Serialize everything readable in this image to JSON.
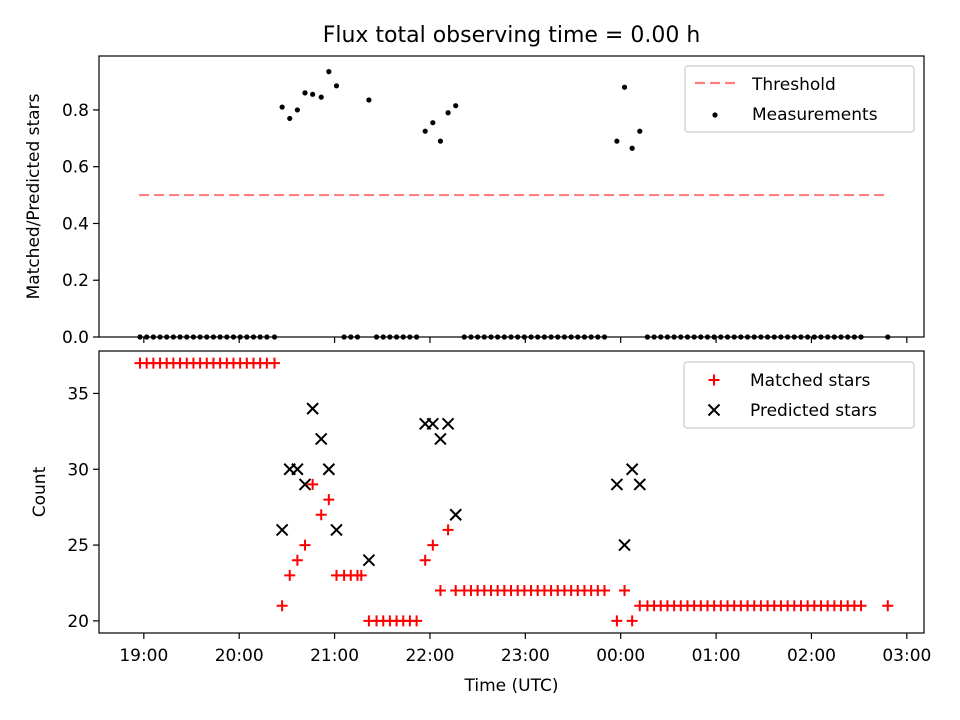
{
  "figure": {
    "title": "Flux total observing time = 0.00 h",
    "xlabel": "Time (UTC)",
    "xticks": [
      {
        "t": 19,
        "label": "19:00"
      },
      {
        "t": 20,
        "label": "20:00"
      },
      {
        "t": 21,
        "label": "21:00"
      },
      {
        "t": 22,
        "label": "22:00"
      },
      {
        "t": 23,
        "label": "23:00"
      },
      {
        "t": 24,
        "label": "00:00"
      },
      {
        "t": 25,
        "label": "01:00"
      },
      {
        "t": 26,
        "label": "02:00"
      },
      {
        "t": 27,
        "label": "03:00"
      }
    ],
    "xlim": [
      18.53,
      27.18
    ]
  },
  "chart_data": [
    {
      "type": "scatter",
      "ylabel": "Matched/Predicted stars",
      "ylim": [
        0,
        0.99
      ],
      "yticks": [
        {
          "v": 0,
          "label": "0.0"
        },
        {
          "v": 0.2,
          "label": "0.2"
        },
        {
          "v": 0.4,
          "label": "0.4"
        },
        {
          "v": 0.6,
          "label": "0.6"
        },
        {
          "v": 0.8,
          "label": "0.8"
        }
      ],
      "legend_position": "top-right",
      "legend": [
        {
          "label": "Threshold",
          "color": "#ff7f7f",
          "style": "dashed-line"
        },
        {
          "label": "Measurements",
          "color": "#000000",
          "style": "dot"
        }
      ],
      "threshold": {
        "y": 0.5,
        "x": [
          18.95,
          26.8
        ]
      },
      "measurements": [
        [
          18.96,
          0
        ],
        [
          19.03,
          0
        ],
        [
          19.1,
          0
        ],
        [
          19.17,
          0
        ],
        [
          19.24,
          0
        ],
        [
          19.31,
          0
        ],
        [
          19.38,
          0
        ],
        [
          19.45,
          0
        ],
        [
          19.52,
          0
        ],
        [
          19.59,
          0
        ],
        [
          19.66,
          0
        ],
        [
          19.73,
          0
        ],
        [
          19.8,
          0
        ],
        [
          19.87,
          0
        ],
        [
          19.94,
          0
        ],
        [
          20.01,
          0
        ],
        [
          20.08,
          0
        ],
        [
          20.15,
          0
        ],
        [
          20.22,
          0
        ],
        [
          20.29,
          0
        ],
        [
          20.37,
          0
        ],
        [
          20.45,
          0.81
        ],
        [
          20.53,
          0.77
        ],
        [
          20.61,
          0.8
        ],
        [
          20.69,
          0.86
        ],
        [
          20.77,
          0.855
        ],
        [
          20.86,
          0.845
        ],
        [
          20.94,
          0.935
        ],
        [
          21.02,
          0.885
        ],
        [
          21.1,
          0
        ],
        [
          21.17,
          0
        ],
        [
          21.24,
          0
        ],
        [
          21.36,
          0.835
        ],
        [
          21.44,
          0
        ],
        [
          21.51,
          0
        ],
        [
          21.58,
          0
        ],
        [
          21.65,
          0
        ],
        [
          21.72,
          0
        ],
        [
          21.79,
          0
        ],
        [
          21.86,
          0
        ],
        [
          21.95,
          0.725
        ],
        [
          22.03,
          0.755
        ],
        [
          22.11,
          0.69
        ],
        [
          22.19,
          0.79
        ],
        [
          22.27,
          0.815
        ],
        [
          22.36,
          0
        ],
        [
          22.43,
          0
        ],
        [
          22.5,
          0
        ],
        [
          22.57,
          0
        ],
        [
          22.64,
          0
        ],
        [
          22.71,
          0
        ],
        [
          22.78,
          0
        ],
        [
          22.85,
          0
        ],
        [
          22.92,
          0
        ],
        [
          22.99,
          0
        ],
        [
          23.06,
          0
        ],
        [
          23.13,
          0
        ],
        [
          23.2,
          0
        ],
        [
          23.27,
          0
        ],
        [
          23.34,
          0
        ],
        [
          23.41,
          0
        ],
        [
          23.48,
          0
        ],
        [
          23.55,
          0
        ],
        [
          23.62,
          0
        ],
        [
          23.69,
          0
        ],
        [
          23.76,
          0
        ],
        [
          23.83,
          0
        ],
        [
          23.96,
          0.69
        ],
        [
          24.04,
          0.88
        ],
        [
          24.12,
          0.665
        ],
        [
          24.2,
          0.725
        ],
        [
          24.28,
          0
        ],
        [
          24.35,
          0
        ],
        [
          24.42,
          0
        ],
        [
          24.49,
          0
        ],
        [
          24.56,
          0
        ],
        [
          24.63,
          0
        ],
        [
          24.7,
          0
        ],
        [
          24.77,
          0
        ],
        [
          24.84,
          0
        ],
        [
          24.91,
          0
        ],
        [
          24.98,
          0
        ],
        [
          25.05,
          0
        ],
        [
          25.12,
          0
        ],
        [
          25.19,
          0
        ],
        [
          25.26,
          0
        ],
        [
          25.33,
          0
        ],
        [
          25.4,
          0
        ],
        [
          25.47,
          0
        ],
        [
          25.54,
          0
        ],
        [
          25.61,
          0
        ],
        [
          25.68,
          0
        ],
        [
          25.75,
          0
        ],
        [
          25.82,
          0
        ],
        [
          25.89,
          0
        ],
        [
          25.96,
          0
        ],
        [
          26.03,
          0
        ],
        [
          26.1,
          0
        ],
        [
          26.17,
          0
        ],
        [
          26.24,
          0
        ],
        [
          26.31,
          0
        ],
        [
          26.38,
          0
        ],
        [
          26.45,
          0
        ],
        [
          26.52,
          0
        ],
        [
          26.8,
          0
        ]
      ]
    },
    {
      "type": "scatter",
      "ylabel": "Count",
      "ylim": [
        19.2,
        37.8
      ],
      "yticks": [
        {
          "v": 20,
          "label": "20"
        },
        {
          "v": 25,
          "label": "25"
        },
        {
          "v": 30,
          "label": "30"
        },
        {
          "v": 35,
          "label": "35"
        }
      ],
      "legend_position": "top-right",
      "series": [
        {
          "name": "Matched stars",
          "color": "#ff0000",
          "marker": "plus",
          "points": [
            [
              18.96,
              37
            ],
            [
              19.03,
              37
            ],
            [
              19.1,
              37
            ],
            [
              19.17,
              37
            ],
            [
              19.24,
              37
            ],
            [
              19.31,
              37
            ],
            [
              19.38,
              37
            ],
            [
              19.45,
              37
            ],
            [
              19.52,
              37
            ],
            [
              19.59,
              37
            ],
            [
              19.66,
              37
            ],
            [
              19.73,
              37
            ],
            [
              19.8,
              37
            ],
            [
              19.87,
              37
            ],
            [
              19.94,
              37
            ],
            [
              20.01,
              37
            ],
            [
              20.08,
              37
            ],
            [
              20.15,
              37
            ],
            [
              20.22,
              37
            ],
            [
              20.29,
              37
            ],
            [
              20.37,
              37
            ],
            [
              20.45,
              21
            ],
            [
              20.53,
              23
            ],
            [
              20.61,
              24
            ],
            [
              20.69,
              25
            ],
            [
              20.77,
              29
            ],
            [
              20.86,
              27
            ],
            [
              20.94,
              28
            ],
            [
              21.02,
              23
            ],
            [
              21.1,
              23
            ],
            [
              21.17,
              23
            ],
            [
              21.24,
              23
            ],
            [
              21.28,
              23
            ],
            [
              21.36,
              20
            ],
            [
              21.44,
              20
            ],
            [
              21.51,
              20
            ],
            [
              21.58,
              20
            ],
            [
              21.65,
              20
            ],
            [
              21.72,
              20
            ],
            [
              21.79,
              20
            ],
            [
              21.86,
              20
            ],
            [
              21.95,
              24
            ],
            [
              22.03,
              25
            ],
            [
              22.11,
              22
            ],
            [
              22.19,
              26
            ],
            [
              22.27,
              22
            ],
            [
              22.36,
              22
            ],
            [
              22.43,
              22
            ],
            [
              22.5,
              22
            ],
            [
              22.57,
              22
            ],
            [
              22.64,
              22
            ],
            [
              22.71,
              22
            ],
            [
              22.78,
              22
            ],
            [
              22.85,
              22
            ],
            [
              22.92,
              22
            ],
            [
              22.99,
              22
            ],
            [
              23.06,
              22
            ],
            [
              23.13,
              22
            ],
            [
              23.2,
              22
            ],
            [
              23.27,
              22
            ],
            [
              23.34,
              22
            ],
            [
              23.41,
              22
            ],
            [
              23.48,
              22
            ],
            [
              23.55,
              22
            ],
            [
              23.62,
              22
            ],
            [
              23.69,
              22
            ],
            [
              23.76,
              22
            ],
            [
              23.83,
              22
            ],
            [
              23.96,
              20
            ],
            [
              24.04,
              22
            ],
            [
              24.12,
              20
            ],
            [
              24.2,
              21
            ],
            [
              24.28,
              21
            ],
            [
              24.35,
              21
            ],
            [
              24.42,
              21
            ],
            [
              24.49,
              21
            ],
            [
              24.56,
              21
            ],
            [
              24.63,
              21
            ],
            [
              24.7,
              21
            ],
            [
              24.77,
              21
            ],
            [
              24.84,
              21
            ],
            [
              24.91,
              21
            ],
            [
              24.98,
              21
            ],
            [
              25.05,
              21
            ],
            [
              25.12,
              21
            ],
            [
              25.19,
              21
            ],
            [
              25.26,
              21
            ],
            [
              25.33,
              21
            ],
            [
              25.4,
              21
            ],
            [
              25.47,
              21
            ],
            [
              25.54,
              21
            ],
            [
              25.61,
              21
            ],
            [
              25.68,
              21
            ],
            [
              25.75,
              21
            ],
            [
              25.82,
              21
            ],
            [
              25.89,
              21
            ],
            [
              25.96,
              21
            ],
            [
              26.03,
              21
            ],
            [
              26.1,
              21
            ],
            [
              26.17,
              21
            ],
            [
              26.24,
              21
            ],
            [
              26.31,
              21
            ],
            [
              26.38,
              21
            ],
            [
              26.45,
              21
            ],
            [
              26.52,
              21
            ],
            [
              26.8,
              21
            ]
          ]
        },
        {
          "name": "Predicted stars",
          "color": "#000000",
          "marker": "x",
          "points": [
            [
              20.45,
              26
            ],
            [
              20.53,
              30
            ],
            [
              20.61,
              30
            ],
            [
              20.69,
              29
            ],
            [
              20.77,
              34
            ],
            [
              20.86,
              32
            ],
            [
              20.94,
              30
            ],
            [
              21.02,
              26
            ],
            [
              21.36,
              24
            ],
            [
              21.95,
              33
            ],
            [
              22.03,
              33
            ],
            [
              22.11,
              32
            ],
            [
              22.19,
              33
            ],
            [
              22.27,
              27
            ],
            [
              23.96,
              29
            ],
            [
              24.04,
              25
            ],
            [
              24.12,
              30
            ],
            [
              24.2,
              29
            ]
          ]
        }
      ]
    }
  ]
}
